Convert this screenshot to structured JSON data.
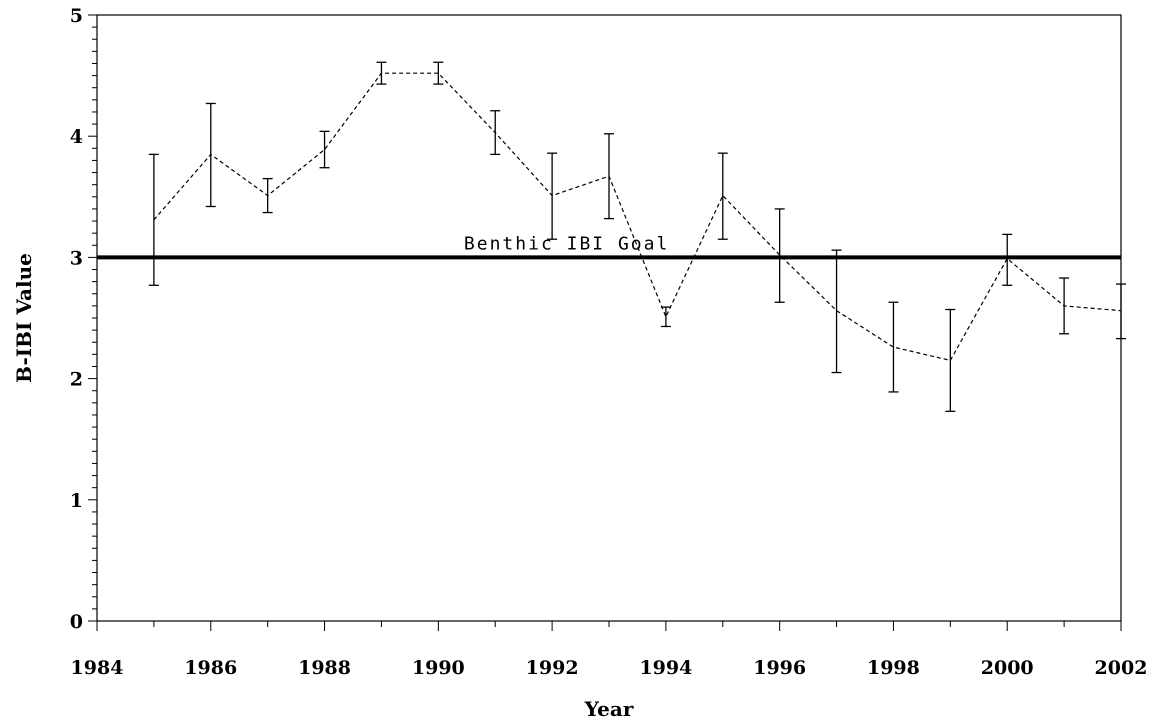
{
  "chart_data": {
    "type": "line",
    "title": "",
    "xlabel": "Year",
    "ylabel": "B-IBI Value",
    "xlim": [
      1984,
      2002
    ],
    "ylim": [
      0,
      5
    ],
    "x_ticks": [
      "1984",
      "1986",
      "1988",
      "1990",
      "1992",
      "1994",
      "1996",
      "1998",
      "2000",
      "2002"
    ],
    "y_ticks": [
      "0",
      "1",
      "2",
      "3",
      "4",
      "5"
    ],
    "grid": false,
    "reference_line": {
      "y": 3,
      "label": "Benthic IBI Goal"
    },
    "series": [
      {
        "x": [
          1985,
          1986,
          1987,
          1988,
          1989,
          1990,
          1991,
          1992,
          1993,
          1994,
          1995,
          1996,
          1997,
          1998,
          1999,
          2000,
          2001,
          2002
        ],
        "y": [
          3.31,
          3.85,
          3.51,
          3.89,
          4.52,
          4.52,
          4.03,
          3.51,
          3.67,
          2.51,
          3.51,
          3.02,
          2.56,
          2.26,
          2.15,
          2.99,
          2.6,
          2.56
        ],
        "y_lower": [
          2.77,
          3.42,
          3.37,
          3.74,
          4.43,
          4.43,
          3.85,
          3.15,
          3.32,
          2.43,
          3.15,
          2.63,
          2.05,
          1.89,
          1.73,
          2.77,
          2.37,
          2.33
        ],
        "y_upper": [
          3.85,
          4.27,
          3.65,
          4.04,
          4.61,
          4.61,
          4.21,
          3.86,
          4.02,
          2.59,
          3.86,
          3.4,
          3.06,
          2.63,
          2.57,
          3.19,
          2.83,
          2.78
        ]
      }
    ]
  }
}
